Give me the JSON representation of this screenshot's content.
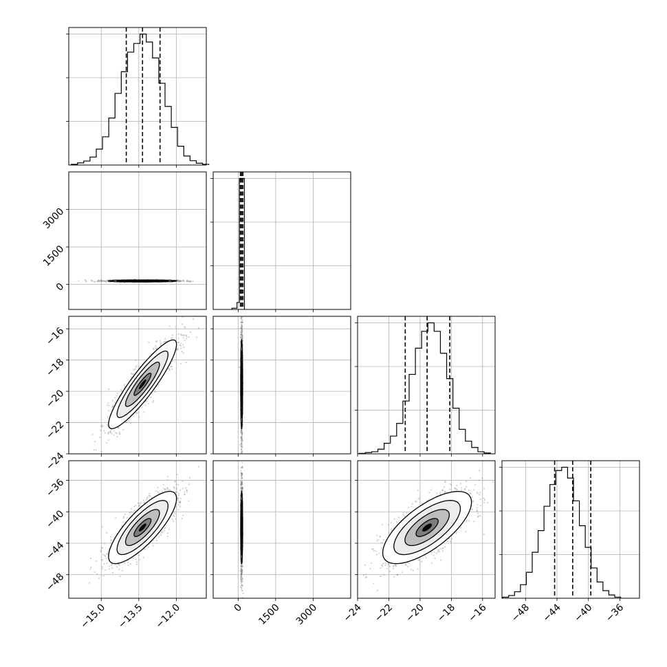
{
  "chart_data": {
    "type": "corner",
    "grid": true,
    "n_params": 4,
    "params": [
      {
        "range": [
          -16.3,
          -10.8
        ],
        "ticks": [
          -15.0,
          -13.5,
          -12.0
        ],
        "tick_labels": [
          "−15.0",
          "−13.5",
          "−12.0"
        ]
      },
      {
        "range": [
          -1000,
          4500
        ],
        "ticks": [
          0,
          1500,
          3000
        ],
        "tick_labels": [
          "0",
          "1500",
          "3000"
        ]
      },
      {
        "range": [
          -24.0,
          -15.2
        ],
        "ticks": [
          -24,
          -22,
          -20,
          -18,
          -16
        ],
        "tick_labels": [
          "−24",
          "−22",
          "−20",
          "−18",
          "−16"
        ]
      },
      {
        "range": [
          -51.0,
          -33.5
        ],
        "ticks": [
          -48,
          -44,
          -40,
          -36
        ],
        "tick_labels": [
          "−48",
          "−44",
          "−40",
          "−36"
        ]
      }
    ],
    "quantiles": [
      [
        -14.0,
        -13.35,
        -12.65
      ],
      [
        90,
        140,
        190
      ],
      [
        -20.95,
        -19.55,
        -18.1
      ],
      [
        -44.3,
        -42.0,
        -39.7
      ]
    ],
    "histograms": [
      {
        "edges_start": -16.2,
        "bin_width": 0.25,
        "counts": [
          2,
          6,
          11,
          22,
          44,
          78,
          130,
          198,
          258,
          312,
          336,
          362,
          340,
          296,
          226,
          162,
          104,
          52,
          25,
          12,
          5,
          2
        ]
      },
      {
        "bins": [
          [
            -250,
            -50,
            5
          ],
          [
            -50,
            50,
            28
          ],
          [
            50,
            250,
            530
          ]
        ]
      },
      {
        "edges_start": -23.9,
        "bin_width": 0.4,
        "counts": [
          1,
          3,
          5,
          11,
          25,
          42,
          72,
          125,
          188,
          250,
          290,
          310,
          290,
          238,
          178,
          108,
          58,
          30,
          15,
          5,
          2
        ]
      },
      {
        "edges_start": -50.9,
        "bin_width": 0.75,
        "counts": [
          2,
          5,
          12,
          25,
          48,
          85,
          125,
          170,
          210,
          236,
          242,
          222,
          180,
          134,
          94,
          56,
          30,
          14,
          6,
          2
        ]
      }
    ],
    "correlations": [
      [
        1,
        0.0,
        0.9,
        0.8
      ],
      [
        0.0,
        1,
        0.0,
        0.0
      ],
      [
        0.9,
        0.0,
        1,
        0.7
      ],
      [
        0.8,
        0.0,
        0.7,
        1
      ]
    ],
    "means": [
      -13.35,
      140,
      -19.55,
      -42.0
    ],
    "sigmas": [
      0.68,
      50,
      1.42,
      2.3
    ],
    "display_sigmas_param1": 20,
    "contour_levels_sigma": [
      0.5,
      1.0,
      1.5,
      2.0
    ]
  }
}
